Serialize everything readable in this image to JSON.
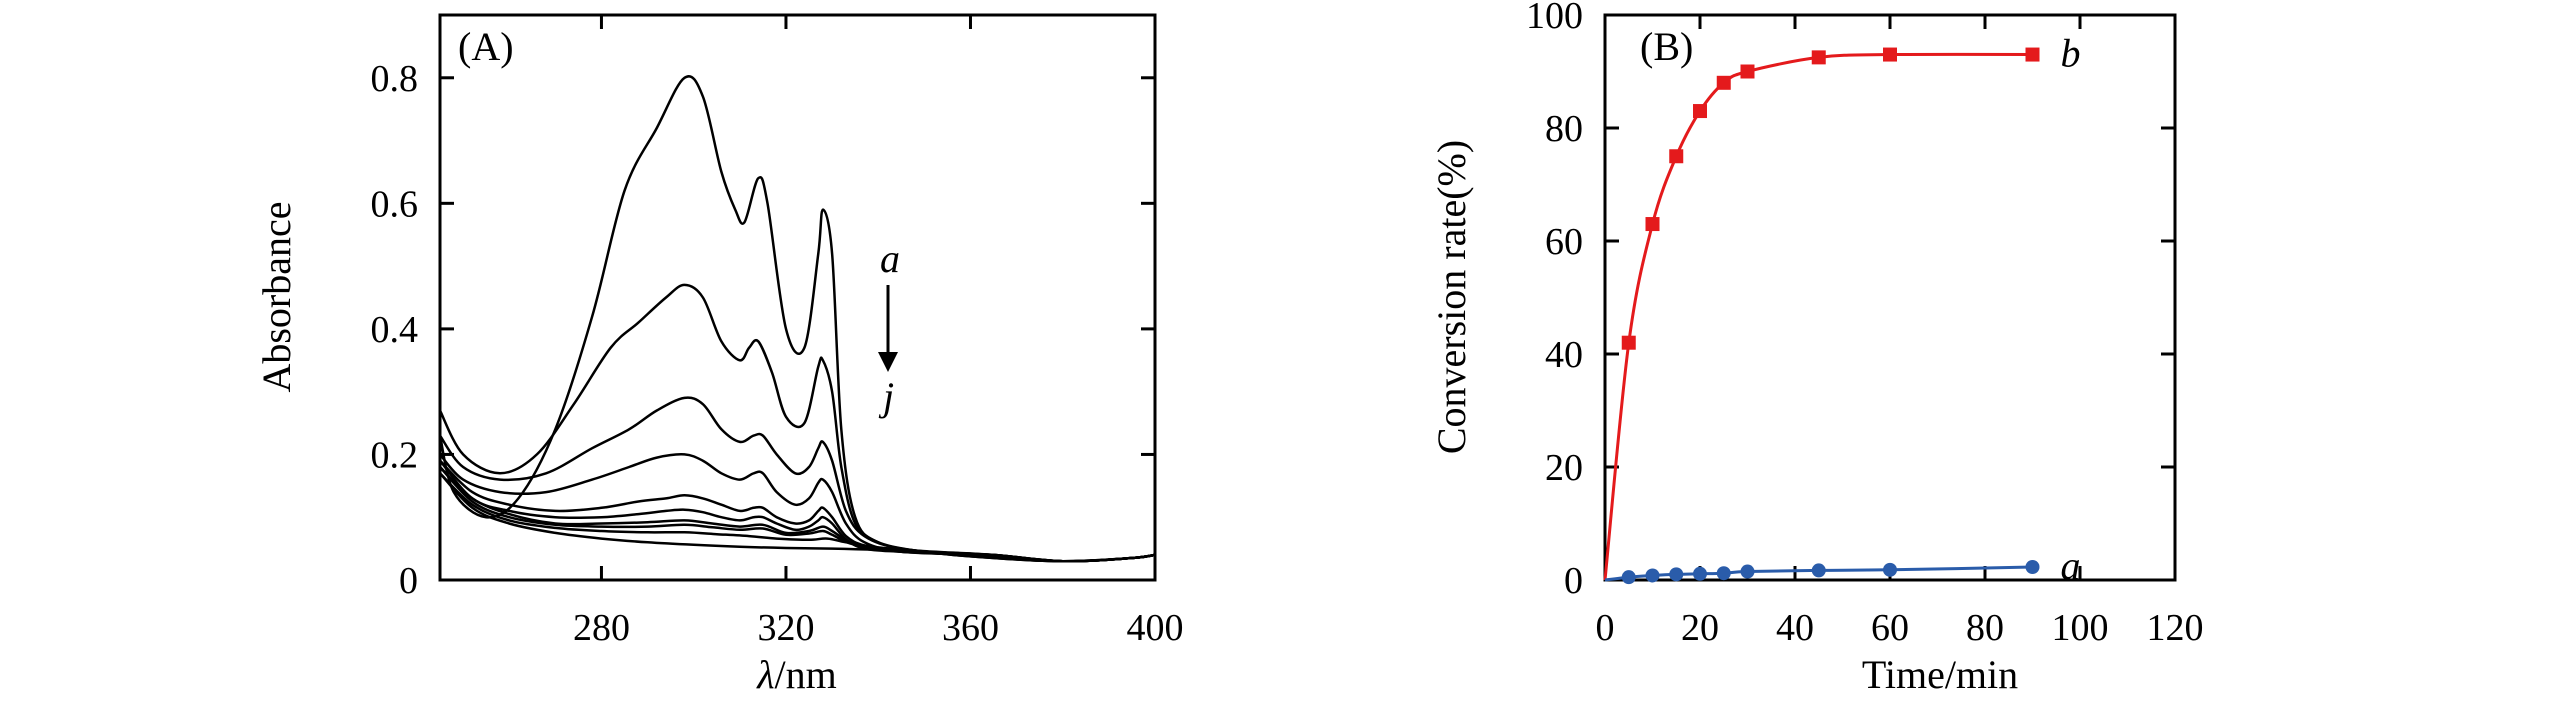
{
  "chart_data": [
    {
      "type": "line",
      "panel_label": "(A)",
      "xlabel_symbol": "λ",
      "xlabel_unit": "/nm",
      "ylabel": "Absorbance",
      "xlim": [
        245,
        400
      ],
      "ylim": [
        0,
        0.9
      ],
      "xticks": [
        280,
        320,
        360,
        400
      ],
      "yticks": [
        0,
        0.2,
        0.4,
        0.6,
        0.8
      ],
      "ytick_labels": [
        "0",
        "0.2",
        "0.4",
        "0.6",
        "0.8"
      ],
      "annotation_start": "a",
      "annotation_end": "j",
      "series": [
        {
          "points": [
            [
              245,
              0.23
            ],
            [
              248,
              0.14
            ],
            [
              255,
              0.1
            ],
            [
              262,
              0.13
            ],
            [
              270,
              0.24
            ],
            [
              278,
              0.42
            ],
            [
              285,
              0.62
            ],
            [
              292,
              0.72
            ],
            [
              298,
              0.8
            ],
            [
              302,
              0.77
            ],
            [
              306,
              0.65
            ],
            [
              309,
              0.59
            ],
            [
              311,
              0.57
            ],
            [
              314,
              0.64
            ],
            [
              316,
              0.6
            ],
            [
              320,
              0.4
            ],
            [
              324,
              0.37
            ],
            [
              327,
              0.52
            ],
            [
              328,
              0.59
            ],
            [
              330,
              0.52
            ],
            [
              332,
              0.24
            ],
            [
              335,
              0.1
            ],
            [
              340,
              0.06
            ],
            [
              350,
              0.045
            ],
            [
              365,
              0.035
            ],
            [
              380,
              0.03
            ],
            [
              395,
              0.035
            ],
            [
              400,
              0.04
            ]
          ]
        },
        {
          "points": [
            [
              245,
              0.27
            ],
            [
              250,
              0.2
            ],
            [
              258,
              0.17
            ],
            [
              266,
              0.2
            ],
            [
              274,
              0.28
            ],
            [
              282,
              0.37
            ],
            [
              288,
              0.41
            ],
            [
              294,
              0.45
            ],
            [
              298,
              0.47
            ],
            [
              302,
              0.45
            ],
            [
              306,
              0.38
            ],
            [
              310,
              0.35
            ],
            [
              312,
              0.37
            ],
            [
              314,
              0.38
            ],
            [
              317,
              0.33
            ],
            [
              320,
              0.26
            ],
            [
              324,
              0.25
            ],
            [
              327,
              0.34
            ],
            [
              328,
              0.35
            ],
            [
              330,
              0.3
            ],
            [
              332,
              0.18
            ],
            [
              335,
              0.09
            ],
            [
              340,
              0.06
            ],
            [
              350,
              0.045
            ],
            [
              365,
              0.035
            ],
            [
              380,
              0.03
            ],
            [
              395,
              0.035
            ],
            [
              400,
              0.04
            ]
          ]
        },
        {
          "points": [
            [
              245,
              0.23
            ],
            [
              250,
              0.18
            ],
            [
              258,
              0.16
            ],
            [
              268,
              0.17
            ],
            [
              278,
              0.21
            ],
            [
              286,
              0.24
            ],
            [
              292,
              0.27
            ],
            [
              298,
              0.29
            ],
            [
              302,
              0.28
            ],
            [
              306,
              0.24
            ],
            [
              310,
              0.22
            ],
            [
              313,
              0.23
            ],
            [
              315,
              0.23
            ],
            [
              318,
              0.2
            ],
            [
              322,
              0.17
            ],
            [
              325,
              0.18
            ],
            [
              327,
              0.21
            ],
            [
              328,
              0.22
            ],
            [
              330,
              0.19
            ],
            [
              333,
              0.11
            ],
            [
              337,
              0.07
            ],
            [
              345,
              0.05
            ],
            [
              360,
              0.04
            ],
            [
              380,
              0.03
            ],
            [
              395,
              0.035
            ],
            [
              400,
              0.04
            ]
          ]
        },
        {
          "points": [
            [
              245,
              0.2
            ],
            [
              250,
              0.16
            ],
            [
              258,
              0.14
            ],
            [
              268,
              0.14
            ],
            [
              278,
              0.16
            ],
            [
              286,
              0.18
            ],
            [
              292,
              0.195
            ],
            [
              298,
              0.2
            ],
            [
              302,
              0.19
            ],
            [
              306,
              0.17
            ],
            [
              310,
              0.16
            ],
            [
              313,
              0.17
            ],
            [
              315,
              0.17
            ],
            [
              318,
              0.14
            ],
            [
              322,
              0.12
            ],
            [
              325,
              0.13
            ],
            [
              327,
              0.155
            ],
            [
              328,
              0.16
            ],
            [
              330,
              0.14
            ],
            [
              333,
              0.09
            ],
            [
              337,
              0.06
            ],
            [
              345,
              0.045
            ],
            [
              360,
              0.04
            ],
            [
              380,
              0.03
            ],
            [
              395,
              0.035
            ],
            [
              400,
              0.04
            ]
          ]
        },
        {
          "points": [
            [
              245,
              0.19
            ],
            [
              252,
              0.14
            ],
            [
              260,
              0.12
            ],
            [
              270,
              0.11
            ],
            [
              280,
              0.115
            ],
            [
              288,
              0.125
            ],
            [
              294,
              0.13
            ],
            [
              298,
              0.135
            ],
            [
              302,
              0.13
            ],
            [
              306,
              0.12
            ],
            [
              310,
              0.11
            ],
            [
              313,
              0.115
            ],
            [
              315,
              0.115
            ],
            [
              318,
              0.1
            ],
            [
              322,
              0.09
            ],
            [
              325,
              0.095
            ],
            [
              327,
              0.11
            ],
            [
              328,
              0.115
            ],
            [
              330,
              0.1
            ],
            [
              333,
              0.07
            ],
            [
              337,
              0.055
            ],
            [
              345,
              0.045
            ],
            [
              360,
              0.04
            ],
            [
              380,
              0.03
            ],
            [
              395,
              0.035
            ],
            [
              400,
              0.04
            ]
          ]
        },
        {
          "points": [
            [
              245,
              0.19
            ],
            [
              252,
              0.13
            ],
            [
              260,
              0.11
            ],
            [
              270,
              0.1
            ],
            [
              280,
              0.1
            ],
            [
              288,
              0.105
            ],
            [
              294,
              0.11
            ],
            [
              298,
              0.112
            ],
            [
              302,
              0.108
            ],
            [
              306,
              0.1
            ],
            [
              310,
              0.095
            ],
            [
              313,
              0.1
            ],
            [
              315,
              0.1
            ],
            [
              318,
              0.09
            ],
            [
              322,
              0.08
            ],
            [
              325,
              0.085
            ],
            [
              327,
              0.095
            ],
            [
              328,
              0.1
            ],
            [
              330,
              0.09
            ],
            [
              333,
              0.065
            ],
            [
              337,
              0.05
            ],
            [
              345,
              0.045
            ],
            [
              360,
              0.04
            ],
            [
              380,
              0.03
            ],
            [
              395,
              0.035
            ],
            [
              400,
              0.04
            ]
          ]
        },
        {
          "points": [
            [
              245,
              0.18
            ],
            [
              252,
              0.13
            ],
            [
              260,
              0.105
            ],
            [
              270,
              0.09
            ],
            [
              280,
              0.09
            ],
            [
              290,
              0.092
            ],
            [
              298,
              0.095
            ],
            [
              304,
              0.09
            ],
            [
              310,
              0.085
            ],
            [
              315,
              0.088
            ],
            [
              320,
              0.075
            ],
            [
              325,
              0.078
            ],
            [
              328,
              0.085
            ],
            [
              330,
              0.078
            ],
            [
              334,
              0.06
            ],
            [
              340,
              0.05
            ],
            [
              350,
              0.045
            ],
            [
              365,
              0.04
            ],
            [
              380,
              0.03
            ],
            [
              395,
              0.035
            ],
            [
              400,
              0.04
            ]
          ]
        },
        {
          "points": [
            [
              245,
              0.18
            ],
            [
              252,
              0.125
            ],
            [
              260,
              0.1
            ],
            [
              270,
              0.088
            ],
            [
              280,
              0.085
            ],
            [
              290,
              0.085
            ],
            [
              298,
              0.088
            ],
            [
              304,
              0.084
            ],
            [
              310,
              0.08
            ],
            [
              315,
              0.082
            ],
            [
              320,
              0.072
            ],
            [
              325,
              0.074
            ],
            [
              328,
              0.078
            ],
            [
              330,
              0.072
            ],
            [
              334,
              0.058
            ],
            [
              340,
              0.05
            ],
            [
              350,
              0.045
            ],
            [
              365,
              0.04
            ],
            [
              380,
              0.03
            ],
            [
              395,
              0.035
            ],
            [
              400,
              0.04
            ]
          ]
        },
        {
          "points": [
            [
              245,
              0.17
            ],
            [
              252,
              0.12
            ],
            [
              260,
              0.095
            ],
            [
              270,
              0.083
            ],
            [
              280,
              0.078
            ],
            [
              290,
              0.076
            ],
            [
              298,
              0.076
            ],
            [
              305,
              0.073
            ],
            [
              312,
              0.07
            ],
            [
              318,
              0.066
            ],
            [
              325,
              0.064
            ],
            [
              329,
              0.066
            ],
            [
              333,
              0.06
            ],
            [
              340,
              0.052
            ],
            [
              350,
              0.046
            ],
            [
              365,
              0.04
            ],
            [
              380,
              0.03
            ],
            [
              395,
              0.035
            ],
            [
              400,
              0.04
            ]
          ]
        },
        {
          "points": [
            [
              245,
              0.17
            ],
            [
              252,
              0.115
            ],
            [
              260,
              0.09
            ],
            [
              270,
              0.075
            ],
            [
              280,
              0.066
            ],
            [
              290,
              0.06
            ],
            [
              300,
              0.056
            ],
            [
              310,
              0.053
            ],
            [
              320,
              0.051
            ],
            [
              330,
              0.05
            ],
            [
              340,
              0.048
            ],
            [
              350,
              0.045
            ],
            [
              365,
              0.04
            ],
            [
              380,
              0.03
            ],
            [
              395,
              0.035
            ],
            [
              400,
              0.04
            ]
          ]
        }
      ]
    },
    {
      "type": "line",
      "panel_label": "(B)",
      "xlabel": "Time/min",
      "ylabel": "Conversion rate(%)",
      "xlim": [
        0,
        120
      ],
      "ylim": [
        0,
        100
      ],
      "xticks": [
        0,
        20,
        40,
        60,
        80,
        100,
        120
      ],
      "yticks": [
        0,
        20,
        40,
        60,
        80,
        100
      ],
      "series": [
        {
          "label": "b",
          "color": "#e41a1c",
          "marker": "square",
          "x": [
            0,
            5,
            10,
            15,
            20,
            25,
            30,
            45,
            60,
            90
          ],
          "y": [
            0,
            42,
            63,
            75,
            83,
            88,
            90,
            92.5,
            93,
            93
          ]
        },
        {
          "label": "a",
          "color": "#2a5caa",
          "marker": "circle",
          "x": [
            0,
            5,
            10,
            15,
            20,
            25,
            30,
            45,
            60,
            90
          ],
          "y": [
            0,
            0.5,
            0.8,
            1.0,
            1.1,
            1.2,
            1.5,
            1.7,
            1.8,
            2.3
          ]
        }
      ]
    }
  ]
}
